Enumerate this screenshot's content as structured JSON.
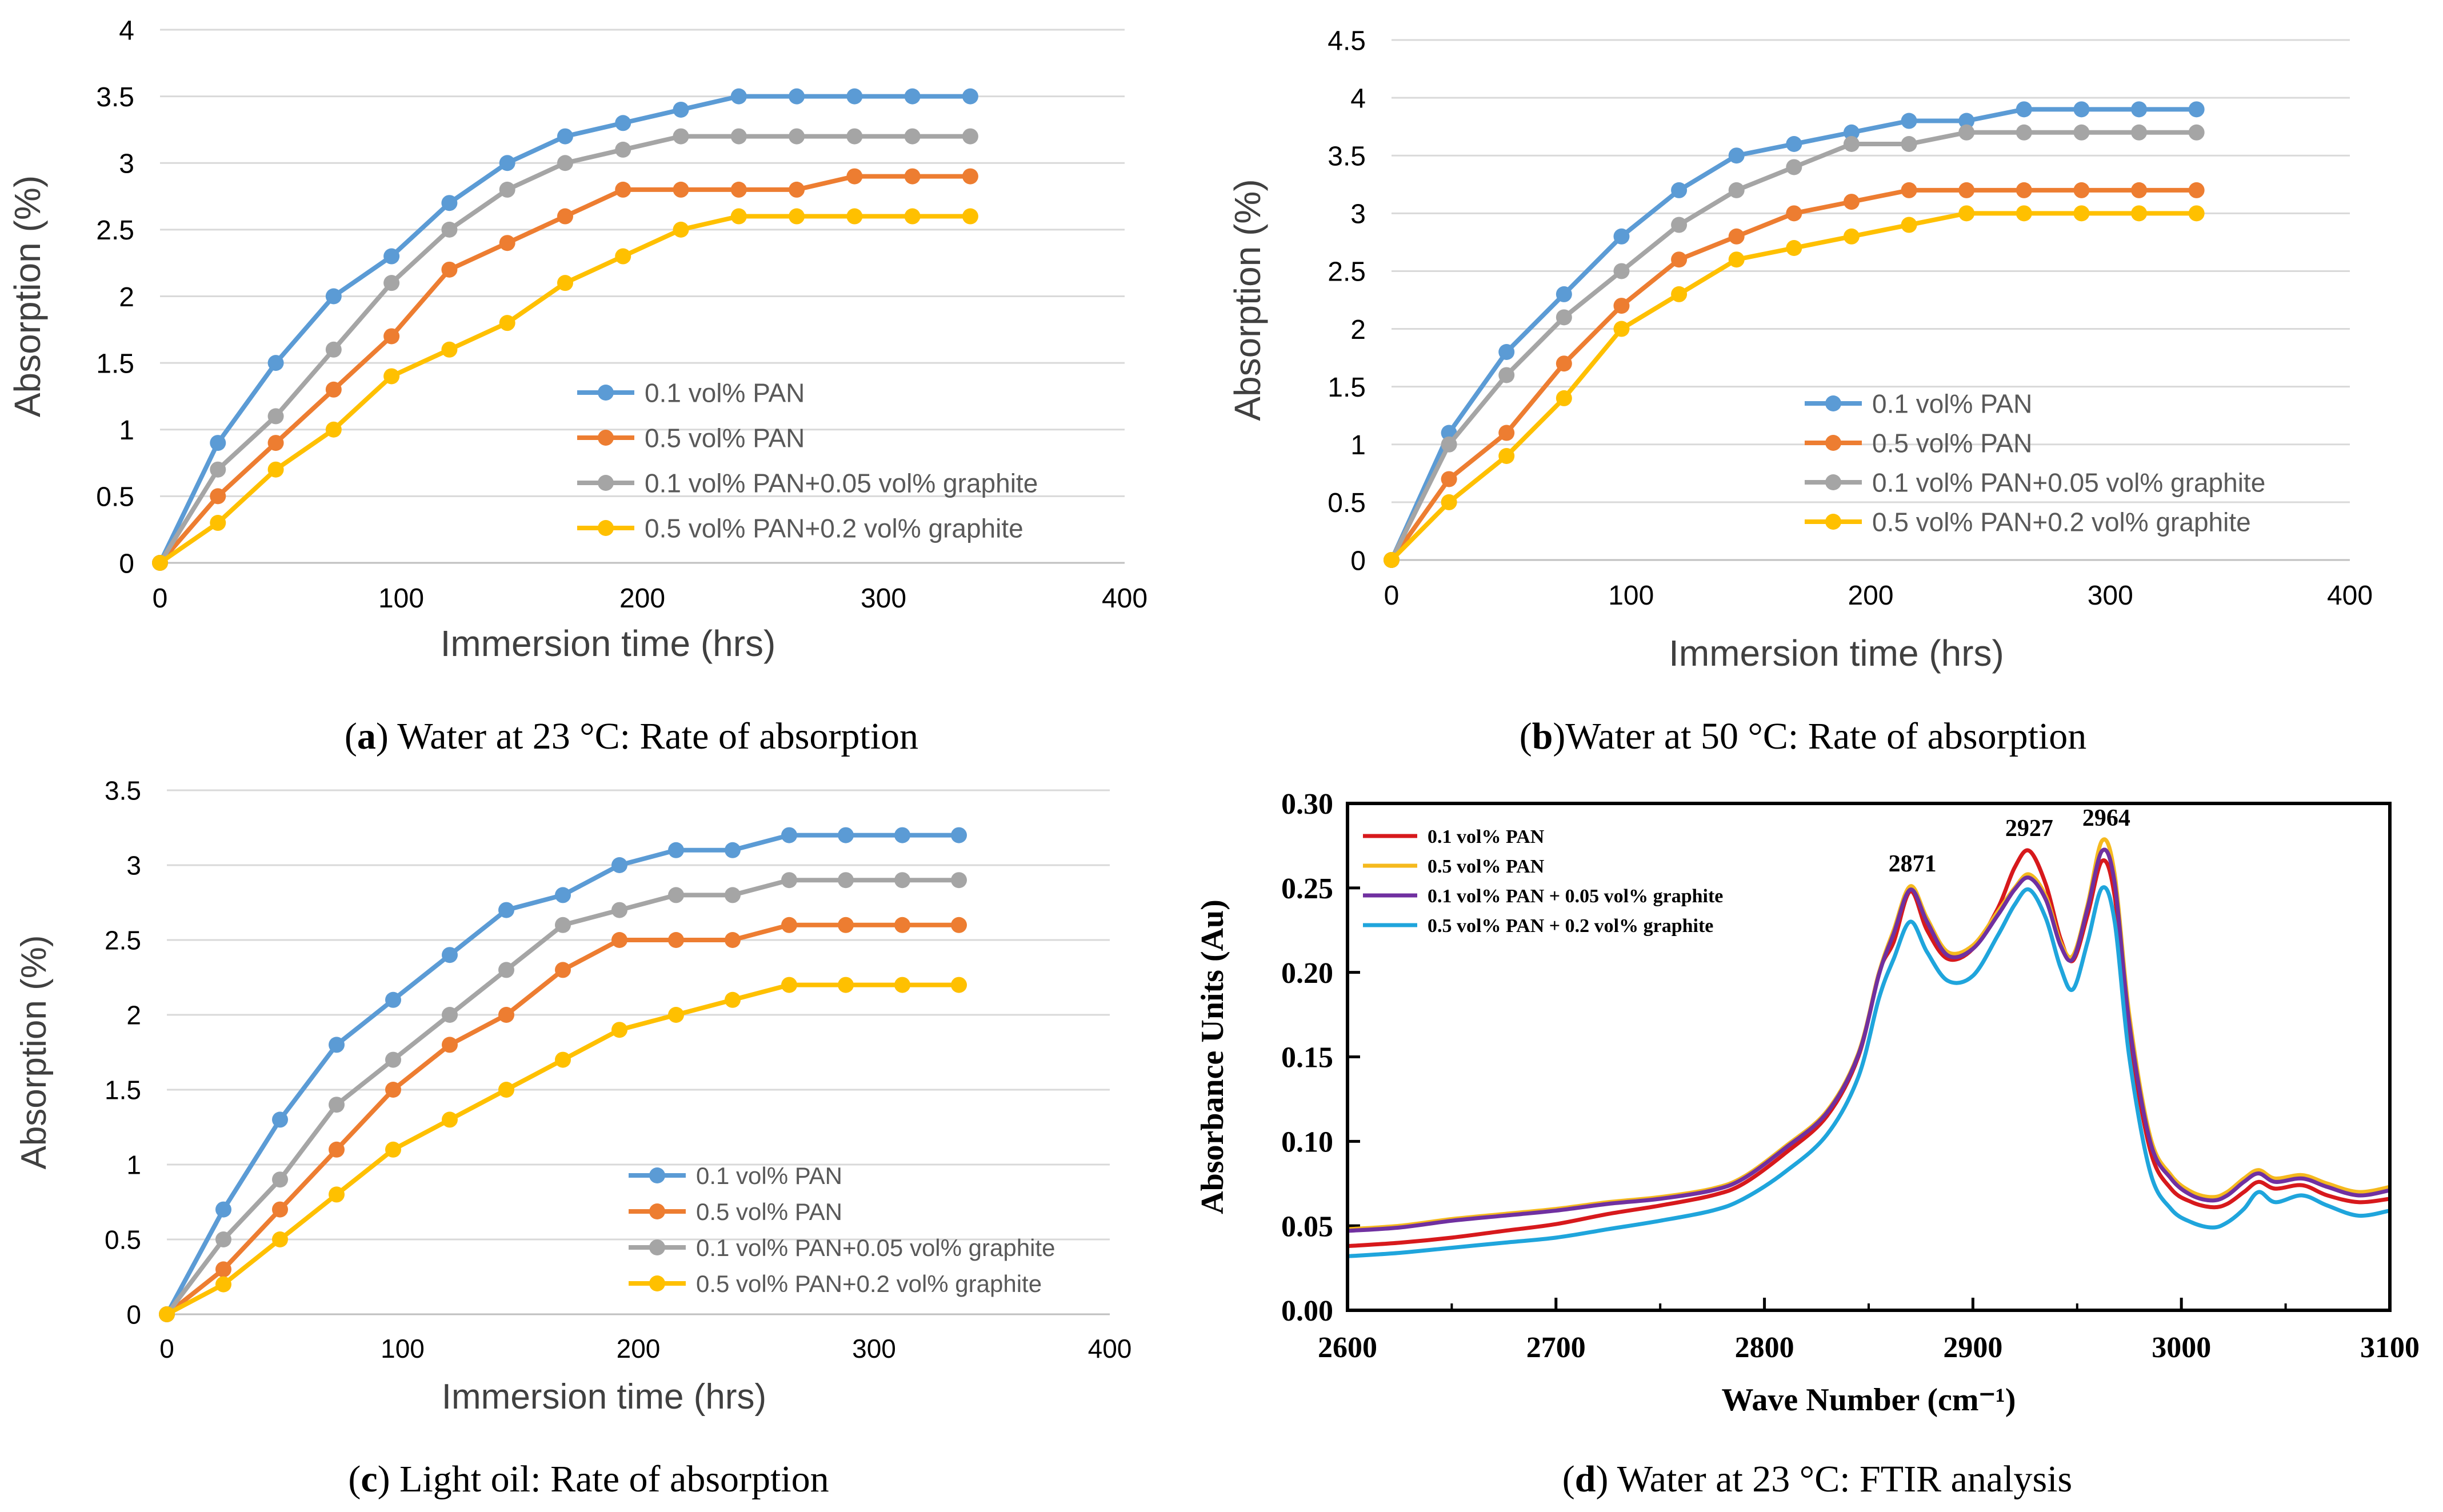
{
  "colors": {
    "blue": "#5b9bd5",
    "orange": "#ed7d31",
    "gray": "#a5a5a5",
    "yellow": "#ffc000",
    "ftir_red": "#d7191c",
    "ftir_orange": "#f5b91e",
    "ftir_purple": "#7030a0",
    "ftir_cyan": "#1fa5dc",
    "grid": "#d9d9d9",
    "text": "#595959"
  },
  "captions": {
    "a": {
      "letter": "a",
      "text": " Water at 23 °C: Rate of absorption"
    },
    "b": {
      "letter": "b",
      "text": "Water at 50 °C: Rate of absorption"
    },
    "c": {
      "letter": "c",
      "text": " Light oil: Rate of absorption"
    },
    "d": {
      "letter": "d",
      "text": " Water at 23 °C: FTIR analysis"
    }
  },
  "chart_data": [
    {
      "id": "a",
      "type": "line",
      "title": "",
      "xlabel": "Immersion time (hrs)",
      "ylabel": "Absorption (%)",
      "xlim": [
        0,
        400
      ],
      "ylim": [
        0,
        4
      ],
      "xticks": [
        "0",
        "100",
        "200",
        "300",
        "400"
      ],
      "yticks": [
        "0",
        "0.5",
        "1",
        "1.5",
        "2",
        "2.5",
        "3",
        "3.5",
        "4"
      ],
      "x": [
        0,
        24,
        48,
        72,
        96,
        120,
        144,
        168,
        192,
        216,
        240,
        264,
        288,
        312,
        336
      ],
      "legend_position": "lower-right",
      "series": [
        {
          "name": "0.1 vol% PAN",
          "color": "blue",
          "values": [
            0,
            0.9,
            1.5,
            2.0,
            2.3,
            2.7,
            3.0,
            3.2,
            3.3,
            3.4,
            3.5,
            3.5,
            3.5,
            3.5,
            3.5
          ]
        },
        {
          "name": "0.5 vol% PAN",
          "color": "orange",
          "values": [
            0,
            0.5,
            0.9,
            1.3,
            1.7,
            2.2,
            2.4,
            2.6,
            2.8,
            2.8,
            2.8,
            2.8,
            2.9,
            2.9,
            2.9
          ]
        },
        {
          "name": "0.1 vol% PAN+0.05 vol% graphite",
          "color": "gray",
          "values": [
            0,
            0.7,
            1.1,
            1.6,
            2.1,
            2.5,
            2.8,
            3.0,
            3.1,
            3.2,
            3.2,
            3.2,
            3.2,
            3.2,
            3.2
          ]
        },
        {
          "name": "0.5 vol% PAN+0.2 vol% graphite",
          "color": "yellow",
          "values": [
            0,
            0.3,
            0.7,
            1.0,
            1.4,
            1.6,
            1.8,
            2.1,
            2.3,
            2.5,
            2.6,
            2.6,
            2.6,
            2.6,
            2.6
          ]
        }
      ]
    },
    {
      "id": "b",
      "type": "line",
      "title": "",
      "xlabel": "Immersion time (hrs)",
      "ylabel": "Absorption (%)",
      "xlim": [
        0,
        400
      ],
      "ylim": [
        0,
        4.5
      ],
      "xticks": [
        "0",
        "100",
        "200",
        "300",
        "400"
      ],
      "yticks": [
        "0",
        "0.5",
        "1",
        "1.5",
        "2",
        "2.5",
        "3",
        "3.5",
        "4",
        "4.5"
      ],
      "x": [
        0,
        24,
        48,
        72,
        96,
        120,
        144,
        168,
        192,
        216,
        240,
        264,
        288,
        312,
        336
      ],
      "legend_position": "lower-right",
      "series": [
        {
          "name": "0.1 vol% PAN",
          "color": "blue",
          "values": [
            0,
            1.1,
            1.8,
            2.3,
            2.8,
            3.2,
            3.5,
            3.6,
            3.7,
            3.8,
            3.8,
            3.9,
            3.9,
            3.9,
            3.9
          ]
        },
        {
          "name": "0.5 vol% PAN",
          "color": "orange",
          "values": [
            0,
            0.7,
            1.1,
            1.7,
            2.2,
            2.6,
            2.8,
            3.0,
            3.1,
            3.2,
            3.2,
            3.2,
            3.2,
            3.2,
            3.2
          ]
        },
        {
          "name": "0.1 vol% PAN+0.05 vol% graphite",
          "color": "gray",
          "values": [
            0,
            1.0,
            1.6,
            2.1,
            2.5,
            2.9,
            3.2,
            3.4,
            3.6,
            3.6,
            3.7,
            3.7,
            3.7,
            3.7,
            3.7
          ]
        },
        {
          "name": "0.5 vol% PAN+0.2 vol% graphite",
          "color": "yellow",
          "values": [
            0,
            0.5,
            0.9,
            1.4,
            2.0,
            2.3,
            2.6,
            2.7,
            2.8,
            2.9,
            3.0,
            3.0,
            3.0,
            3.0,
            3.0
          ]
        }
      ]
    },
    {
      "id": "c",
      "type": "line",
      "title": "",
      "xlabel": "Immersion time (hrs)",
      "ylabel": "Absorption (%)",
      "xlim": [
        0,
        400
      ],
      "ylim": [
        0,
        3.5
      ],
      "xticks": [
        "0",
        "100",
        "200",
        "300",
        "400"
      ],
      "yticks": [
        "0",
        "0.5",
        "1",
        "1.5",
        "2",
        "2.5",
        "3",
        "3.5"
      ],
      "x": [
        0,
        24,
        48,
        72,
        96,
        120,
        144,
        168,
        192,
        216,
        240,
        264,
        288,
        312,
        336
      ],
      "legend_position": "lower-right",
      "series": [
        {
          "name": "0.1 vol% PAN",
          "color": "blue",
          "values": [
            0,
            0.7,
            1.3,
            1.8,
            2.1,
            2.4,
            2.7,
            2.8,
            3.0,
            3.1,
            3.1,
            3.2,
            3.2,
            3.2,
            3.2
          ]
        },
        {
          "name": "0.5 vol% PAN",
          "color": "orange",
          "values": [
            0,
            0.3,
            0.7,
            1.1,
            1.5,
            1.8,
            2.0,
            2.3,
            2.5,
            2.5,
            2.5,
            2.6,
            2.6,
            2.6,
            2.6
          ]
        },
        {
          "name": "0.1 vol% PAN+0.05 vol% graphite",
          "color": "gray",
          "values": [
            0,
            0.5,
            0.9,
            1.4,
            1.7,
            2.0,
            2.3,
            2.6,
            2.7,
            2.8,
            2.8,
            2.9,
            2.9,
            2.9,
            2.9
          ]
        },
        {
          "name": "0.5 vol% PAN+0.2 vol% graphite",
          "color": "yellow",
          "values": [
            0,
            0.2,
            0.5,
            0.8,
            1.1,
            1.3,
            1.5,
            1.7,
            1.9,
            2.0,
            2.1,
            2.2,
            2.2,
            2.2,
            2.2
          ]
        }
      ]
    },
    {
      "id": "d",
      "type": "line",
      "title": "",
      "xlabel": "Wave Number (cm⁻¹)",
      "ylabel": "Absorbance Units (Au)",
      "xlim": [
        2600,
        3100
      ],
      "ylim": [
        0,
        0.3
      ],
      "xticks": [
        "2600",
        "2700",
        "2800",
        "2900",
        "3000",
        "3100"
      ],
      "yticks": [
        "0.00",
        "0.05",
        "0.10",
        "0.15",
        "0.20",
        "0.25",
        "0.30"
      ],
      "legend_position": "top-left",
      "annotations": [
        {
          "text": "2871",
          "x": 2871,
          "y": 0.251
        },
        {
          "text": "2927",
          "x": 2927,
          "y": 0.272
        },
        {
          "text": "2964",
          "x": 2964,
          "y": 0.278
        }
      ],
      "x": [
        2600,
        2625,
        2650,
        2675,
        2700,
        2725,
        2750,
        2775,
        2790,
        2810,
        2830,
        2845,
        2855,
        2862,
        2870,
        2878,
        2888,
        2900,
        2912,
        2920,
        2927,
        2935,
        2942,
        2948,
        2955,
        2962,
        2968,
        2975,
        2985,
        2995,
        3005,
        3015,
        3022,
        3030,
        3037,
        3045,
        3058,
        3070,
        3085,
        3100
      ],
      "series": [
        {
          "name": "0.1 vol% PAN",
          "color": "ftir_red",
          "values": [
            0.038,
            0.04,
            0.043,
            0.047,
            0.051,
            0.057,
            0.062,
            0.068,
            0.075,
            0.093,
            0.115,
            0.15,
            0.2,
            0.218,
            0.248,
            0.225,
            0.208,
            0.214,
            0.238,
            0.262,
            0.272,
            0.252,
            0.22,
            0.207,
            0.234,
            0.266,
            0.245,
            0.165,
            0.095,
            0.072,
            0.064,
            0.061,
            0.063,
            0.07,
            0.076,
            0.072,
            0.074,
            0.068,
            0.064,
            0.066
          ]
        },
        {
          "name": "0.5 vol% PAN",
          "color": "ftir_orange",
          "values": [
            0.048,
            0.05,
            0.054,
            0.057,
            0.06,
            0.064,
            0.067,
            0.072,
            0.079,
            0.097,
            0.118,
            0.152,
            0.2,
            0.225,
            0.251,
            0.232,
            0.212,
            0.216,
            0.236,
            0.25,
            0.258,
            0.245,
            0.218,
            0.21,
            0.24,
            0.278,
            0.258,
            0.175,
            0.103,
            0.08,
            0.07,
            0.067,
            0.07,
            0.078,
            0.083,
            0.078,
            0.08,
            0.075,
            0.07,
            0.073
          ]
        },
        {
          "name": "0.1 vol% PAN + 0.05 vol% graphite",
          "color": "ftir_purple",
          "values": [
            0.047,
            0.049,
            0.053,
            0.056,
            0.059,
            0.063,
            0.066,
            0.071,
            0.078,
            0.096,
            0.117,
            0.151,
            0.199,
            0.223,
            0.249,
            0.23,
            0.21,
            0.214,
            0.234,
            0.249,
            0.256,
            0.243,
            0.216,
            0.208,
            0.238,
            0.272,
            0.253,
            0.17,
            0.1,
            0.078,
            0.068,
            0.065,
            0.068,
            0.076,
            0.081,
            0.076,
            0.078,
            0.073,
            0.068,
            0.071
          ]
        },
        {
          "name": "0.5 vol% PAN + 0.2 vol% graphite",
          "color": "ftir_cyan",
          "values": [
            0.032,
            0.034,
            0.037,
            0.04,
            0.043,
            0.048,
            0.053,
            0.059,
            0.066,
            0.082,
            0.104,
            0.138,
            0.185,
            0.208,
            0.23,
            0.212,
            0.195,
            0.198,
            0.222,
            0.24,
            0.249,
            0.232,
            0.203,
            0.19,
            0.218,
            0.25,
            0.23,
            0.15,
            0.082,
            0.06,
            0.052,
            0.049,
            0.052,
            0.06,
            0.07,
            0.064,
            0.068,
            0.062,
            0.056,
            0.059
          ]
        }
      ]
    }
  ]
}
